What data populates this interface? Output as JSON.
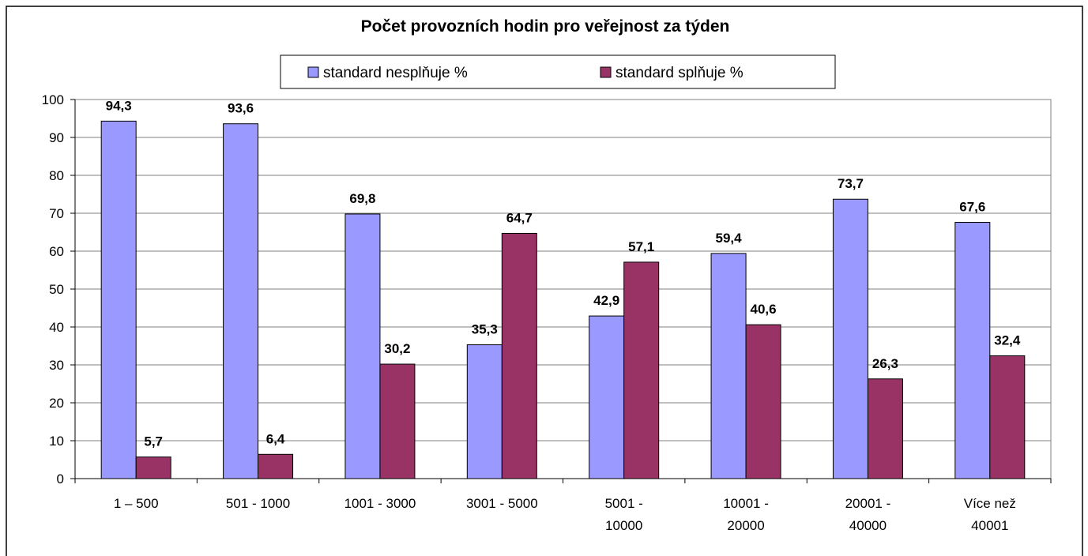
{
  "chart_data": {
    "type": "bar",
    "title": "Počet provozních hodin pro veřejnost za týden",
    "categories": [
      "1 – 500",
      "501 - 1000",
      "1001 - 3000",
      "3001 - 5000",
      "5001 - 10000",
      "10001 - 20000",
      "20001 - 40000",
      "Více než 40001"
    ],
    "series": [
      {
        "name": "standard nesplňuje %",
        "color": "#9999ff",
        "values": [
          94.3,
          93.6,
          69.8,
          35.3,
          42.9,
          59.4,
          73.7,
          67.6
        ],
        "value_labels": [
          "94,3",
          "93,6",
          "69,8",
          "35,3",
          "42,9",
          "59,4",
          "73,7",
          "67,6"
        ]
      },
      {
        "name": "standard splňuje %",
        "color": "#993366",
        "values": [
          5.7,
          6.4,
          30.2,
          64.7,
          57.1,
          40.6,
          26.3,
          32.4
        ],
        "value_labels": [
          "5,7",
          "6,4",
          "30,2",
          "64,7",
          "57,1",
          "40,6",
          "26,3",
          "32,4"
        ]
      }
    ],
    "ylim": [
      0,
      100
    ],
    "yticks": [
      0,
      10,
      20,
      30,
      40,
      50,
      60,
      70,
      80,
      90,
      100
    ],
    "grid": true,
    "legend": "top"
  }
}
